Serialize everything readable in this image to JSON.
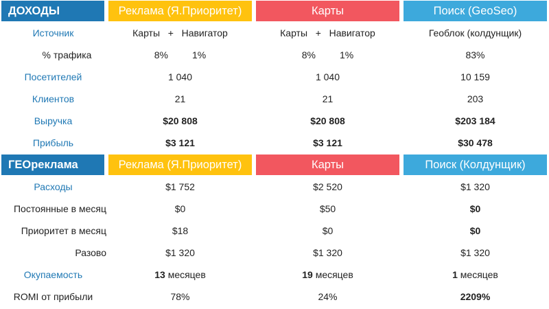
{
  "income": {
    "title": "ДОХОДЫ",
    "columns": [
      "Реклама (Я.Приоритет)",
      "Карты",
      "Поиск (GeoSeo)"
    ],
    "source": {
      "label": "Источник",
      "col1": {
        "a": "Карты",
        "plus": "+",
        "b": "Навигатор"
      },
      "col2": {
        "a": "Карты",
        "plus": "+",
        "b": "Навигатор"
      },
      "col3": "Геоблок (колдунщик)"
    },
    "traffic": {
      "label": "% трафика",
      "col1": {
        "a": "8%",
        "b": "1%"
      },
      "col2": {
        "a": "8%",
        "b": "1%"
      },
      "col3": "83%"
    },
    "visitors": {
      "label": "Посетителей",
      "values": [
        "1 040",
        "1 040",
        "10 159"
      ]
    },
    "clients": {
      "label": "Клиентов",
      "values": [
        "21",
        "21",
        "203"
      ]
    },
    "revenue": {
      "label": "Выручка",
      "values": [
        "$20 808",
        "$20 808",
        "$203 184"
      ]
    },
    "profit": {
      "label": "Прибыль",
      "values": [
        "$3 121",
        "$3 121",
        "$30 478"
      ]
    }
  },
  "geo": {
    "title": "ГЕОреклама",
    "columns": [
      "Реклама (Я.Приоритет)",
      "Карты",
      "Поиск (Колдунщик)"
    ],
    "expenses": {
      "label": "Расходы",
      "values": [
        "$1 752",
        "$2 520",
        "$1 320"
      ]
    },
    "monthly_fixed": {
      "label": "Постоянные в месяц",
      "values": [
        "$0",
        "$50",
        "$0"
      ]
    },
    "priority_monthly": {
      "label": "Приоритет в месяц",
      "values": [
        "$18",
        "$0",
        "$0"
      ]
    },
    "one_time": {
      "label": "Разово",
      "values": [
        "$1 320",
        "$1 320",
        "$1 320"
      ]
    },
    "payback": {
      "label": "Окупаемость",
      "numbers": [
        "13",
        "19",
        "1"
      ],
      "unit": "месяцев"
    },
    "romi": {
      "label": "ROMI от прибыли",
      "values": [
        "78%",
        "24%",
        "2209%"
      ]
    }
  },
  "colors": {
    "title_bg": "#1f78b4",
    "label_text": "#1f78b4",
    "yellow": "#ffc20e",
    "red": "#f2575f",
    "blue": "#3da9dc"
  }
}
